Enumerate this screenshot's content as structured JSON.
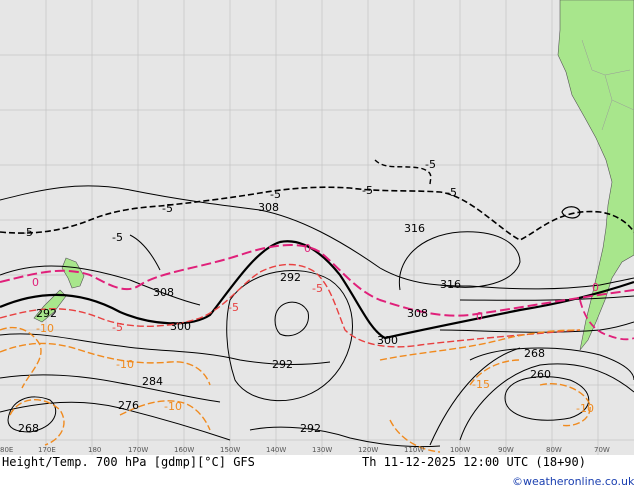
{
  "title": "Height/Temp. 700 hPa [gdmp][°C] GFS",
  "valid_time": "Th 11-12-2025 12:00 UTC (18+90)",
  "credit": "©weatheronline.co.uk",
  "longitude_ticks": [
    "80E",
    "170E",
    "180",
    "170W",
    "160W",
    "150W",
    "140W",
    "130W",
    "120W",
    "110W",
    "100W",
    "90W",
    "80W",
    "70W"
  ],
  "height_labels": [
    {
      "text": "308"
    },
    {
      "text": "308"
    },
    {
      "text": "300"
    },
    {
      "text": "292"
    },
    {
      "text": "292"
    },
    {
      "text": "292"
    },
    {
      "text": "292"
    },
    {
      "text": "284"
    },
    {
      "text": "276"
    },
    {
      "text": "268"
    },
    {
      "text": "268"
    },
    {
      "text": "260"
    },
    {
      "text": "316"
    },
    {
      "text": "316"
    },
    {
      "text": "308"
    },
    {
      "text": "300"
    }
  ],
  "temp_labels": [
    {
      "text": "-5"
    },
    {
      "text": "-5"
    },
    {
      "text": "-5"
    },
    {
      "text": "-5"
    },
    {
      "text": "-5"
    },
    {
      "text": "-5"
    },
    {
      "text": "-5"
    },
    {
      "text": "0"
    },
    {
      "text": "0"
    },
    {
      "text": "-5"
    },
    {
      "text": "-5"
    },
    {
      "text": "-5"
    },
    {
      "text": "0"
    },
    {
      "text": "0"
    },
    {
      "text": "-10"
    },
    {
      "text": "-10"
    },
    {
      "text": "-10"
    },
    {
      "text": "-15"
    },
    {
      "text": "-10"
    }
  ],
  "colors": {
    "ocean": "#e6e6e6",
    "land": "#a8e68c",
    "height_contour": "#000000",
    "temp_contour_0": "#e0207a",
    "temp_contour_neg5": "#e84040",
    "temp_contour_neg10": "#f08a1e"
  }
}
